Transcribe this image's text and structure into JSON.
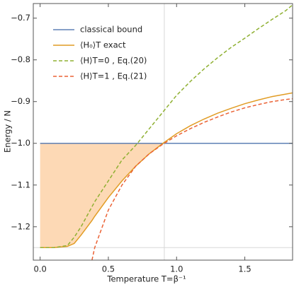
{
  "chart_data": {
    "type": "line",
    "xlabel": "Temperature T=β⁻¹",
    "ylabel": "Energy / N",
    "x": [
      0,
      0.1,
      0.2,
      0.25,
      0.3,
      0.38,
      0.4,
      0.5,
      0.6,
      0.7,
      0.8,
      0.9,
      1.0,
      1.1,
      1.2,
      1.3,
      1.4,
      1.5,
      1.6,
      1.7,
      1.8,
      1.85
    ],
    "series": [
      {
        "name": "classical bound",
        "color": "#5e81b5",
        "dash": false,
        "values": [
          -1,
          -1,
          -1,
          -1,
          -1,
          -1,
          -1,
          -1,
          -1,
          -1,
          -1,
          -1,
          -1,
          -1,
          -1,
          -1,
          -1,
          -1,
          -1,
          -1,
          -1,
          -1
        ]
      },
      {
        "name": "⟨H₀⟩T  exact",
        "color": "#e19c24",
        "dash": false,
        "values": [
          -1.25,
          -1.25,
          -1.247,
          -1.24,
          -1.22,
          -1.185,
          -1.175,
          -1.13,
          -1.09,
          -1.055,
          -1.025,
          -1.0,
          -0.977,
          -0.958,
          -0.942,
          -0.928,
          -0.916,
          -0.905,
          -0.896,
          -0.888,
          -0.882,
          -0.879
        ]
      },
      {
        "name": "⟨H⟩T=0 , Eq.(20)",
        "color": "#8fb032",
        "dash": true,
        "values": [
          -1.25,
          -1.25,
          -1.245,
          -1.225,
          -1.2,
          -1.152,
          -1.14,
          -1.09,
          -1.04,
          -1.005,
          -0.965,
          -0.925,
          -0.885,
          -0.852,
          -0.822,
          -0.795,
          -0.77,
          -0.748,
          -0.725,
          -0.703,
          -0.682,
          -0.668
        ]
      },
      {
        "name": "⟨H⟩T=1 , Eq.(21)",
        "color": "#eb6235",
        "dash": true,
        "values": [
          null,
          null,
          null,
          null,
          null,
          -1.28,
          -1.25,
          -1.16,
          -1.1,
          -1.055,
          -1.025,
          -1.002,
          -0.982,
          -0.965,
          -0.95,
          -0.937,
          -0.925,
          -0.915,
          -0.907,
          -0.9,
          -0.895,
          -0.893
        ]
      }
    ],
    "fill": {
      "between": [
        0,
        1
      ],
      "color": "#fdd9b5"
    },
    "gridlines": {
      "x": [
        0.91
      ],
      "y": [
        -1.25
      ]
    },
    "xlim": [
      -0.05,
      1.85
    ],
    "ylim": [
      -1.28,
      -0.665
    ],
    "xticks": [
      {
        "value": 0,
        "label": "0.0"
      },
      0.5,
      {
        "value": 1,
        "label": "1.0"
      },
      1.5
    ],
    "yticks": [
      {
        "value": -1.2,
        "label": "−1.2"
      },
      {
        "value": -1.1,
        "label": "−1.1"
      },
      {
        "value": -1.0,
        "label": "−1.0"
      },
      {
        "value": -0.9,
        "label": "−0.9"
      },
      {
        "value": -0.8,
        "label": "−0.8"
      },
      {
        "value": -0.7,
        "label": "−0.7"
      }
    ],
    "legend": "top-left"
  }
}
